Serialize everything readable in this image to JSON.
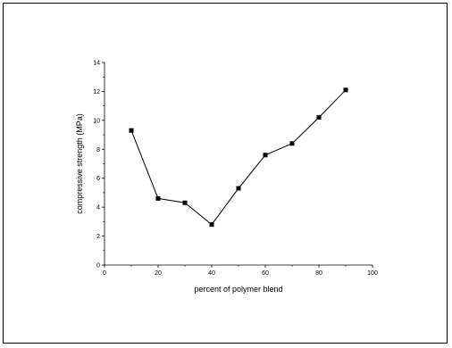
{
  "chart_data": {
    "type": "line",
    "title": "",
    "xlabel": "percent of polymer blend",
    "ylabel": "compressive strength (MPa)",
    "xlim": [
      0,
      100
    ],
    "ylim": [
      0,
      14
    ],
    "x_ticks": [
      0,
      20,
      40,
      60,
      80,
      100
    ],
    "y_ticks": [
      0,
      2,
      4,
      6,
      8,
      10,
      12,
      14
    ],
    "grid": false,
    "marker": "square",
    "series": [
      {
        "x": [
          10,
          20,
          30,
          40,
          50,
          60,
          70,
          80,
          90
        ],
        "values": [
          9.3,
          4.6,
          4.3,
          2.8,
          5.3,
          7.6,
          8.4,
          10.2,
          12.1
        ]
      }
    ]
  }
}
